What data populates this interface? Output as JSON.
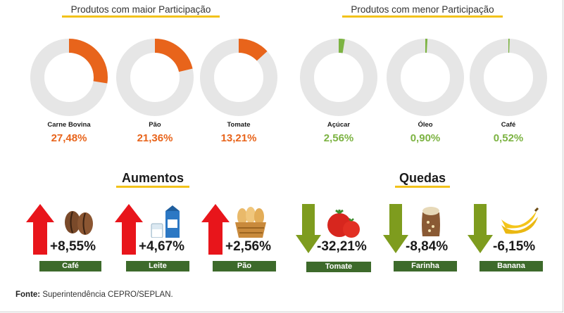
{
  "header": {
    "maior_title": "Produtos com maior Participação",
    "menor_title": "Produtos com menor Participação"
  },
  "chart_data": [
    {
      "type": "pie",
      "title": "Produtos com maior Participação",
      "categories": [
        "Carne Bovina",
        "Pão",
        "Tomate"
      ],
      "values": [
        27.48,
        21.36,
        13.21
      ],
      "value_labels": [
        "27,48%",
        "21,36%",
        "13,21%"
      ],
      "unit": "%",
      "color": "#e8641b",
      "track_color": "#e6e6e6"
    },
    {
      "type": "pie",
      "title": "Produtos com menor Participação",
      "categories": [
        "Açúcar",
        "Óleo",
        "Café"
      ],
      "values": [
        2.56,
        0.9,
        0.52
      ],
      "value_labels": [
        "2,56%",
        "0,90%",
        "0,52%"
      ],
      "unit": "%",
      "color": "#7cb342",
      "track_color": "#e6e6e6"
    }
  ],
  "aumentos": {
    "title": "Aumentos",
    "items": [
      {
        "label": "Café",
        "value": "+8,55%",
        "icon": "coffee-beans-icon"
      },
      {
        "label": "Leite",
        "value": "+4,67%",
        "icon": "milk-icon"
      },
      {
        "label": "Pão",
        "value": "+2,56%",
        "icon": "bread-basket-icon"
      }
    ],
    "arrow_color": "#e8151b"
  },
  "quedas": {
    "title": "Quedas",
    "items": [
      {
        "label": "Tomate",
        "value": "-32,21%",
        "icon": "tomato-icon"
      },
      {
        "label": "Farinha",
        "value": "-8,84%",
        "icon": "flour-sack-icon"
      },
      {
        "label": "Banana",
        "value": "-6,15%",
        "icon": "banana-icon"
      }
    ],
    "arrow_color": "#7e9c1e"
  },
  "source": {
    "label": "Fonte:",
    "text": " Superintendência CEPRO/SEPLAN."
  },
  "colors": {
    "highlight": "#f2c21b",
    "label_bg": "#3d6a2b"
  }
}
